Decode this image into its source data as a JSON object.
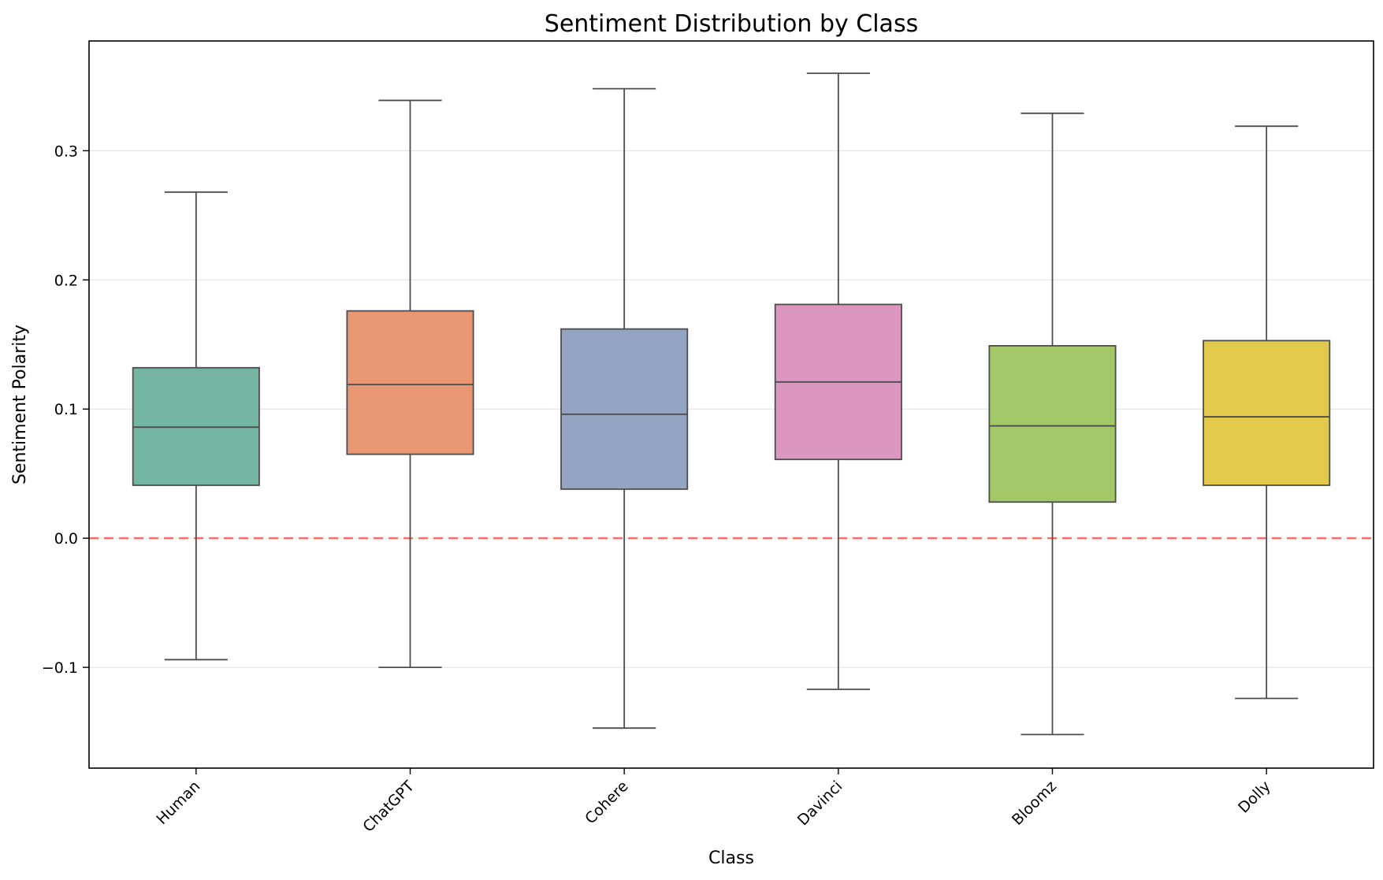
{
  "chart_data": {
    "type": "box",
    "title": "Sentiment Distribution by Class",
    "xlabel": "Class",
    "ylabel": "Sentiment Polarity",
    "ylim": [
      -0.178,
      0.385
    ],
    "yticks": [
      -0.1,
      0.0,
      0.1,
      0.2,
      0.3
    ],
    "ytick_labels": [
      "−0.1",
      "0.0",
      "0.1",
      "0.2",
      "0.3"
    ],
    "grid": "y",
    "reference_line": {
      "y": 0.0,
      "style": "dashed",
      "color": "#ff6b6b"
    },
    "colors": {
      "box_edge": "#4d4d4d",
      "grid": "#e6e6e6",
      "axes": "#000000"
    },
    "categories": [
      "Human",
      "ChatGPT",
      "Cohere",
      "Davinci",
      "Bloomz",
      "Dolly"
    ],
    "boxes": [
      {
        "name": "Human",
        "whisker_low": -0.094,
        "q1": 0.041,
        "median": 0.086,
        "q3": 0.132,
        "whisker_high": 0.268,
        "color": "#73b5a1"
      },
      {
        "name": "ChatGPT",
        "whisker_low": -0.1,
        "q1": 0.065,
        "median": 0.119,
        "q3": 0.176,
        "whisker_high": 0.339,
        "color": "#e99672"
      },
      {
        "name": "Cohere",
        "whisker_low": -0.147,
        "q1": 0.038,
        "median": 0.096,
        "q3": 0.162,
        "whisker_high": 0.348,
        "color": "#94a4c3"
      },
      {
        "name": "Davinci",
        "whisker_low": -0.117,
        "q1": 0.061,
        "median": 0.121,
        "q3": 0.181,
        "whisker_high": 0.36,
        "color": "#db97bf"
      },
      {
        "name": "Bloomz",
        "whisker_low": -0.152,
        "q1": 0.028,
        "median": 0.087,
        "q3": 0.149,
        "whisker_high": 0.329,
        "color": "#a2c867"
      },
      {
        "name": "Dolly",
        "whisker_low": -0.124,
        "q1": 0.041,
        "median": 0.094,
        "q3": 0.153,
        "whisker_high": 0.319,
        "color": "#e3c94b"
      }
    ]
  }
}
